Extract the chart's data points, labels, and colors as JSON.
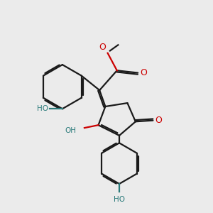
{
  "background_color": "#ebebeb",
  "bond_color": "#1a1a1a",
  "oxygen_color": "#cc0000",
  "hydroxyl_label_color": "#2a7a7a",
  "line_width": 1.6,
  "figsize": [
    3.0,
    3.0
  ],
  "dpi": 100,
  "xlim": [
    0.5,
    9.5
  ],
  "ylim": [
    0.5,
    9.5
  ]
}
